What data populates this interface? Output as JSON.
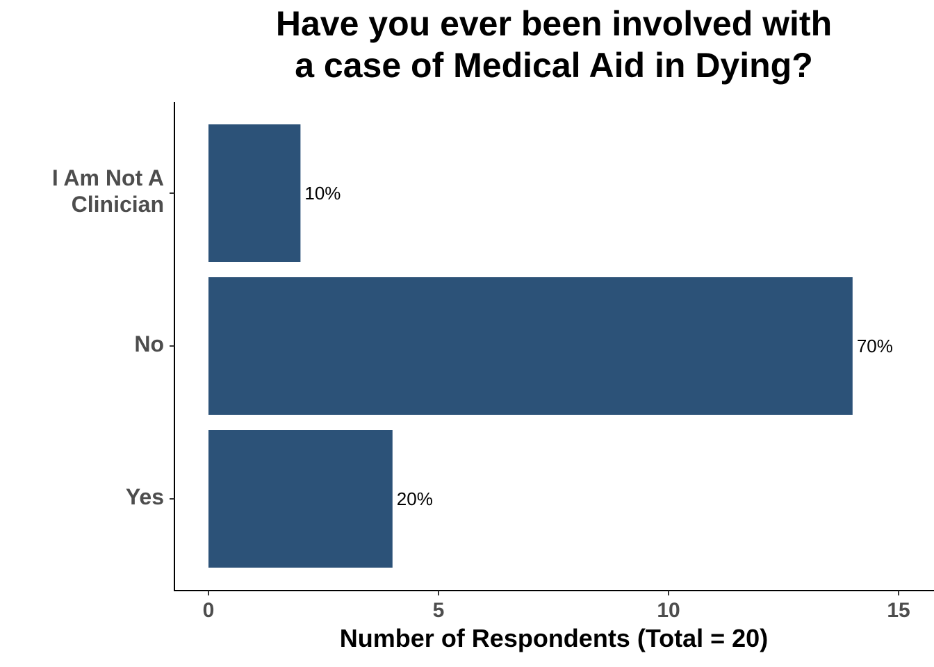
{
  "chart_data": {
    "type": "bar",
    "orientation": "horizontal",
    "title": "Have you ever been involved with\na case of Medical Aid in Dying?",
    "x_label": "Number of Respondents (Total = 20)",
    "categories": [
      "I Am Not A\nClinician",
      "No",
      "Yes"
    ],
    "values": [
      2,
      14,
      4
    ],
    "value_labels": [
      "10%",
      "70%",
      "20%"
    ],
    "color": "#2c5278",
    "xlim": [
      -0.74,
      15.77
    ],
    "xticks": [
      0,
      5,
      10,
      15
    ],
    "grid": false
  }
}
